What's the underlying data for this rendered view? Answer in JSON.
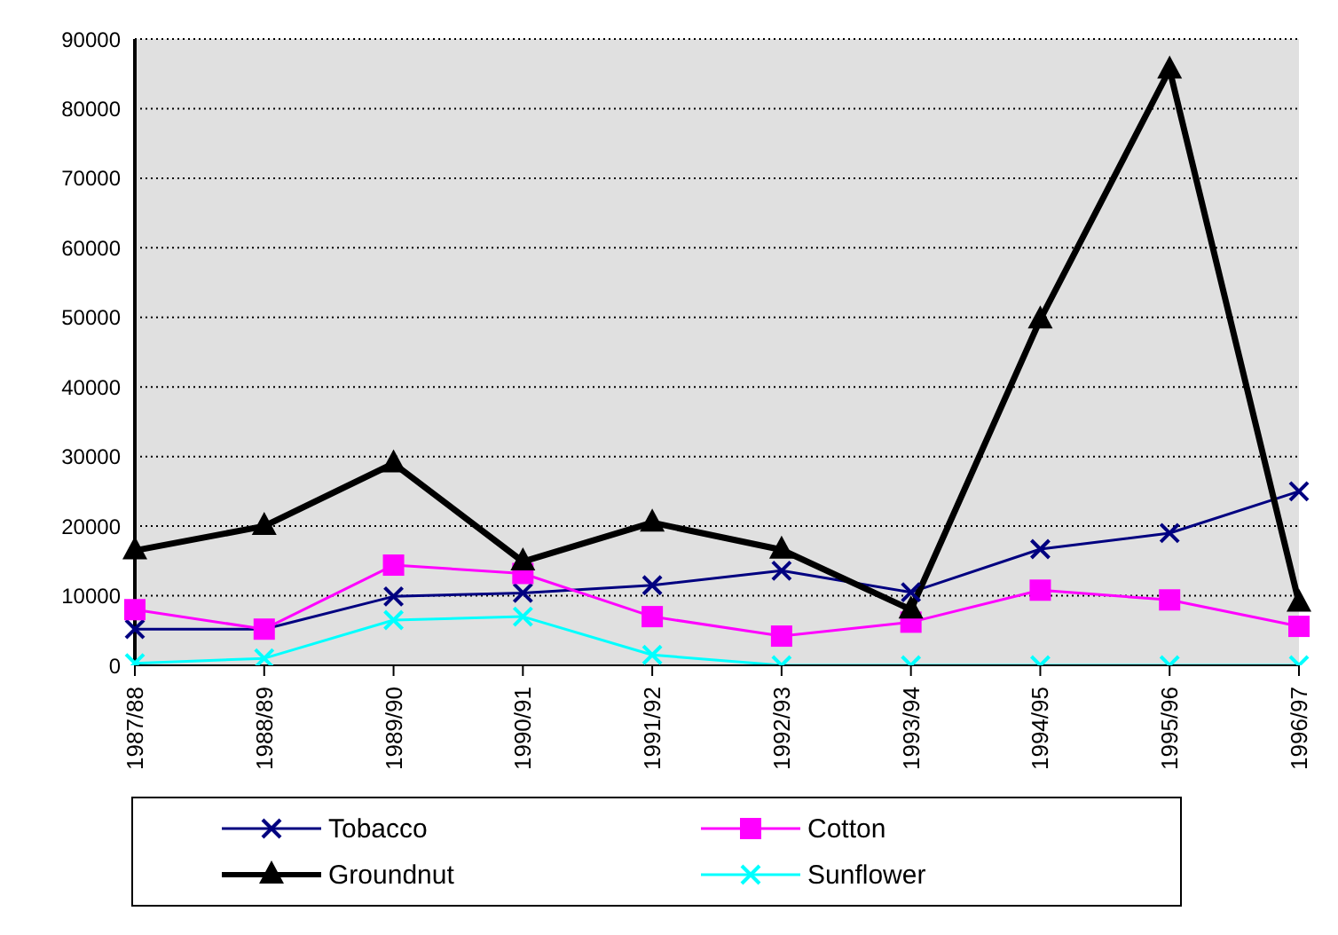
{
  "chart_data": {
    "type": "line",
    "categories": [
      "1987/88",
      "1988/89",
      "1989/90",
      "1990/91",
      "1991/92",
      "1992/93",
      "1993/94",
      "1994/95",
      "1995/96",
      "1996/97"
    ],
    "series": [
      {
        "name": "Tobacco",
        "color": "#000080",
        "marker": "cross",
        "values": [
          5200,
          5200,
          9900,
          10400,
          11500,
          13600,
          10500,
          16700,
          19000,
          25000
        ]
      },
      {
        "name": "Cotton",
        "color": "#ff00ff",
        "marker": "square",
        "values": [
          8000,
          5200,
          14400,
          13200,
          7000,
          4200,
          6200,
          10800,
          9400,
          5600
        ]
      },
      {
        "name": "Groundnut",
        "color": "#000000",
        "marker": "triangle",
        "values": [
          16500,
          20000,
          29000,
          14900,
          20500,
          16600,
          8000,
          49700,
          85600,
          9000
        ]
      },
      {
        "name": "Sunflower",
        "color": "#00ffff",
        "marker": "cross",
        "values": [
          300,
          1000,
          6500,
          7000,
          1500,
          0,
          0,
          0,
          0,
          0
        ]
      }
    ],
    "ylim": [
      0,
      90000
    ],
    "yticks": [
      0,
      10000,
      20000,
      30000,
      40000,
      50000,
      60000,
      70000,
      80000,
      90000
    ],
    "grid": "y",
    "legend": "bottom"
  }
}
